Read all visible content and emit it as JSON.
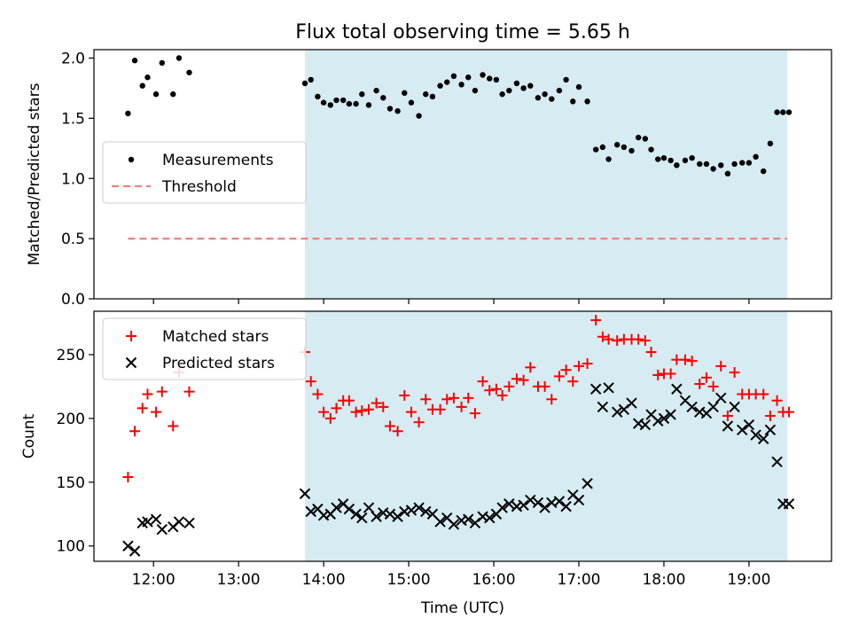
{
  "figure": {
    "title": "Flux total observing time = 5.65 h"
  },
  "chart_data": [
    {
      "type": "scatter",
      "panel": "top",
      "xlabel": "",
      "ylabel": "Matched/Predicted stars",
      "xlim": [
        11.3,
        19.97
      ],
      "ylim": [
        0,
        2.07
      ],
      "yticks": [
        0.0,
        0.5,
        1.0,
        1.5,
        2.0
      ],
      "ytick_labels": [
        "0.0",
        "0.5",
        "1.0",
        "1.5",
        "2.0"
      ],
      "shaded_region": {
        "x": [
          13.78,
          19.45
        ],
        "color": "#add8e6"
      },
      "legend": {
        "position": "center-left",
        "entries": [
          "Measurements",
          "Threshold"
        ]
      },
      "series": [
        {
          "name": "Measurements",
          "marker": "dot",
          "color": "#000000",
          "x": [
            11.7,
            11.78,
            11.87,
            11.93,
            12.03,
            12.1,
            12.23,
            12.3,
            12.42,
            13.78,
            13.85,
            13.93,
            14.0,
            14.08,
            14.15,
            14.23,
            14.3,
            14.38,
            14.45,
            14.53,
            14.62,
            14.7,
            14.78,
            14.87,
            14.95,
            15.03,
            15.12,
            15.2,
            15.28,
            15.37,
            15.45,
            15.53,
            15.62,
            15.7,
            15.78,
            15.87,
            15.95,
            16.03,
            16.1,
            16.18,
            16.27,
            16.35,
            16.43,
            16.52,
            16.6,
            16.68,
            16.77,
            16.85,
            16.93,
            17.0,
            17.1,
            17.2,
            17.28,
            17.35,
            17.45,
            17.53,
            17.62,
            17.7,
            17.78,
            17.85,
            17.93,
            18.0,
            18.08,
            18.15,
            18.25,
            18.33,
            18.42,
            18.5,
            18.58,
            18.67,
            18.75,
            18.83,
            18.92,
            19.0,
            19.08,
            19.17,
            19.25,
            19.33,
            19.4,
            19.47
          ],
          "y": [
            1.54,
            1.98,
            1.77,
            1.84,
            1.7,
            1.96,
            1.7,
            2.0,
            1.88,
            1.79,
            1.82,
            1.68,
            1.63,
            1.61,
            1.65,
            1.65,
            1.62,
            1.62,
            1.7,
            1.61,
            1.73,
            1.67,
            1.58,
            1.56,
            1.71,
            1.63,
            1.52,
            1.7,
            1.68,
            1.77,
            1.8,
            1.85,
            1.78,
            1.84,
            1.73,
            1.86,
            1.83,
            1.82,
            1.7,
            1.73,
            1.79,
            1.75,
            1.77,
            1.67,
            1.7,
            1.66,
            1.73,
            1.82,
            1.64,
            1.76,
            1.64,
            1.24,
            1.26,
            1.16,
            1.28,
            1.26,
            1.23,
            1.34,
            1.33,
            1.24,
            1.16,
            1.17,
            1.15,
            1.11,
            1.15,
            1.17,
            1.12,
            1.12,
            1.08,
            1.11,
            1.04,
            1.12,
            1.13,
            1.13,
            1.18,
            1.06,
            1.29,
            1.55,
            1.55,
            1.55
          ]
        },
        {
          "name": "Threshold",
          "style": "dashed",
          "color": "#f08080",
          "x": [
            11.7,
            19.45
          ],
          "y": [
            0.5,
            0.5
          ]
        }
      ]
    },
    {
      "type": "scatter",
      "panel": "bottom",
      "xlabel": "Time (UTC)",
      "ylabel": "Count",
      "xlim": [
        11.3,
        19.97
      ],
      "ylim": [
        88,
        284
      ],
      "xticks": [
        12,
        13,
        14,
        15,
        16,
        17,
        18,
        19
      ],
      "xtick_labels": [
        "12:00",
        "13:00",
        "14:00",
        "15:00",
        "16:00",
        "17:00",
        "18:00",
        "19:00"
      ],
      "yticks": [
        100,
        150,
        200,
        250
      ],
      "ytick_labels": [
        "100",
        "150",
        "200",
        "250"
      ],
      "shaded_region": {
        "x": [
          13.78,
          19.45
        ],
        "color": "#add8e6"
      },
      "legend": {
        "position": "top-left",
        "entries": [
          "Matched stars",
          "Predicted stars"
        ]
      },
      "series": [
        {
          "name": "Matched stars",
          "marker": "plus",
          "color": "#ff0000",
          "x": [
            11.7,
            11.78,
            11.87,
            11.93,
            12.03,
            12.1,
            12.23,
            12.3,
            12.42,
            13.78,
            13.85,
            13.93,
            14.0,
            14.08,
            14.15,
            14.23,
            14.3,
            14.38,
            14.45,
            14.53,
            14.62,
            14.7,
            14.78,
            14.87,
            14.95,
            15.03,
            15.12,
            15.2,
            15.28,
            15.37,
            15.45,
            15.53,
            15.62,
            15.7,
            15.78,
            15.87,
            15.95,
            16.03,
            16.1,
            16.18,
            16.27,
            16.35,
            16.43,
            16.52,
            16.6,
            16.68,
            16.77,
            16.85,
            16.93,
            17.0,
            17.1,
            17.2,
            17.28,
            17.35,
            17.45,
            17.53,
            17.62,
            17.7,
            17.78,
            17.85,
            17.93,
            18.0,
            18.08,
            18.15,
            18.25,
            18.33,
            18.42,
            18.5,
            18.58,
            18.67,
            18.75,
            18.83,
            18.92,
            19.0,
            19.08,
            19.17,
            19.25,
            19.33,
            19.4,
            19.47
          ],
          "y": [
            154,
            190,
            208,
            219,
            205,
            221,
            194,
            236,
            221,
            252,
            229,
            219,
            205,
            200,
            208,
            214,
            214,
            205,
            206,
            207,
            212,
            209,
            194,
            190,
            218,
            205,
            197,
            215,
            207,
            207,
            215,
            216,
            209,
            216,
            204,
            229,
            222,
            223,
            218,
            225,
            231,
            230,
            240,
            225,
            225,
            215,
            233,
            238,
            229,
            241,
            243,
            277,
            264,
            262,
            261,
            262,
            262,
            262,
            261,
            252,
            234,
            235,
            235,
            246,
            246,
            245,
            227,
            232,
            225,
            241,
            202,
            236,
            219,
            219,
            219,
            219,
            202,
            214,
            205,
            205
          ]
        },
        {
          "name": "Predicted stars",
          "marker": "x",
          "color": "#000000",
          "x": [
            11.7,
            11.78,
            11.87,
            11.93,
            12.03,
            12.1,
            12.23,
            12.3,
            12.42,
            13.78,
            13.85,
            13.93,
            14.0,
            14.08,
            14.15,
            14.23,
            14.3,
            14.38,
            14.45,
            14.53,
            14.62,
            14.7,
            14.78,
            14.87,
            14.95,
            15.03,
            15.12,
            15.2,
            15.28,
            15.37,
            15.45,
            15.53,
            15.62,
            15.7,
            15.78,
            15.87,
            15.95,
            16.03,
            16.1,
            16.18,
            16.27,
            16.35,
            16.43,
            16.52,
            16.6,
            16.68,
            16.77,
            16.85,
            16.93,
            17.0,
            17.1,
            17.2,
            17.28,
            17.35,
            17.45,
            17.53,
            17.62,
            17.7,
            17.78,
            17.85,
            17.93,
            18.0,
            18.08,
            18.15,
            18.25,
            18.33,
            18.42,
            18.5,
            18.58,
            18.67,
            18.75,
            18.83,
            18.92,
            19.0,
            19.08,
            19.17,
            19.25,
            19.33,
            19.4,
            19.47
          ],
          "y": [
            100,
            96,
            118,
            119,
            121,
            113,
            115,
            119,
            118,
            141,
            127,
            129,
            124,
            125,
            130,
            133,
            129,
            125,
            122,
            130,
            123,
            126,
            125,
            123,
            127,
            128,
            130,
            127,
            125,
            119,
            122,
            117,
            120,
            121,
            118,
            123,
            122,
            125,
            130,
            133,
            131,
            132,
            136,
            134,
            130,
            134,
            135,
            131,
            140,
            136,
            149,
            223,
            209,
            224,
            205,
            207,
            212,
            196,
            195,
            203,
            198,
            200,
            203,
            223,
            214,
            209,
            205,
            204,
            209,
            216,
            194,
            209,
            191,
            195,
            187,
            184,
            191,
            166,
            133,
            133
          ]
        }
      ]
    }
  ]
}
